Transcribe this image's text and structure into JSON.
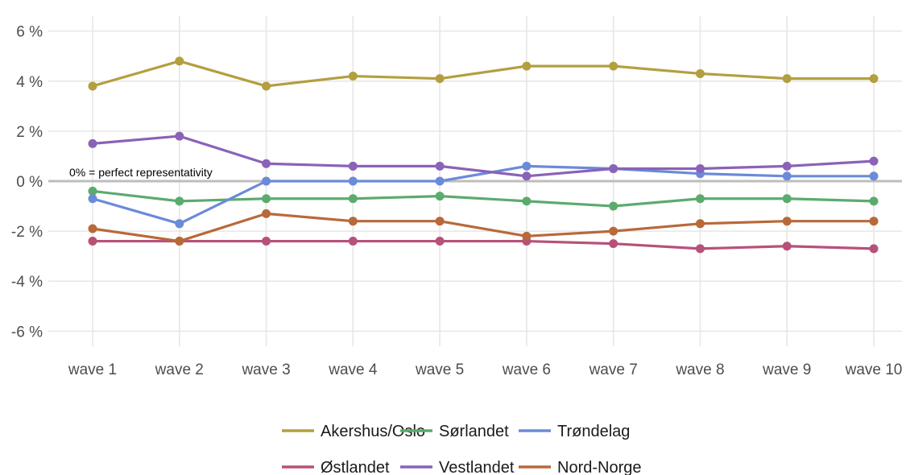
{
  "chart_data": {
    "type": "line",
    "title": "",
    "xlabel": "",
    "ylabel": "",
    "categories": [
      "wave 1",
      "wave 2",
      "wave 3",
      "wave 4",
      "wave 5",
      "wave 6",
      "wave 7",
      "wave 8",
      "wave 9",
      "wave 10"
    ],
    "yticks": [
      -6,
      -4,
      -2,
      0,
      2,
      4,
      6
    ],
    "ytick_labels": [
      "-6 %",
      "-4 %",
      "-2 %",
      "0 %",
      "2 %",
      "4 %",
      "6 %"
    ],
    "ylim": [
      -6.6,
      6.6
    ],
    "y_unit": "%",
    "grid": true,
    "legend_position": "bottom",
    "reference_line": {
      "y": 0,
      "color": "#bdbdbd",
      "label": "0% = perfect representativity"
    },
    "series": [
      {
        "name": "Akershus/Oslo",
        "color": "#b39f3f",
        "values": [
          3.8,
          4.8,
          3.8,
          4.2,
          4.1,
          4.6,
          4.6,
          4.3,
          4.1,
          4.1
        ]
      },
      {
        "name": "Sørlandet",
        "color": "#5bab6e",
        "values": [
          -0.4,
          -0.8,
          -0.7,
          -0.7,
          -0.6,
          -0.8,
          -1.0,
          -0.7,
          -0.7,
          -0.8
        ]
      },
      {
        "name": "Trøndelag",
        "color": "#6b8ad9",
        "values": [
          -0.7,
          -1.7,
          0.0,
          0.0,
          0.0,
          0.6,
          0.5,
          0.3,
          0.2,
          0.2
        ]
      },
      {
        "name": "Østlandet",
        "color": "#b7517a",
        "values": [
          -2.4,
          -2.4,
          -2.4,
          -2.4,
          -2.4,
          -2.4,
          -2.5,
          -2.7,
          -2.6,
          -2.7
        ]
      },
      {
        "name": "Vestlandet",
        "color": "#8a62b8",
        "values": [
          1.5,
          1.8,
          0.7,
          0.6,
          0.6,
          0.2,
          0.5,
          0.5,
          0.6,
          0.8
        ]
      },
      {
        "name": "Nord-Norge",
        "color": "#b8693a",
        "values": [
          -1.9,
          -2.4,
          -1.3,
          -1.6,
          -1.6,
          -2.2,
          -2.0,
          -1.7,
          -1.6,
          -1.6
        ]
      }
    ]
  }
}
